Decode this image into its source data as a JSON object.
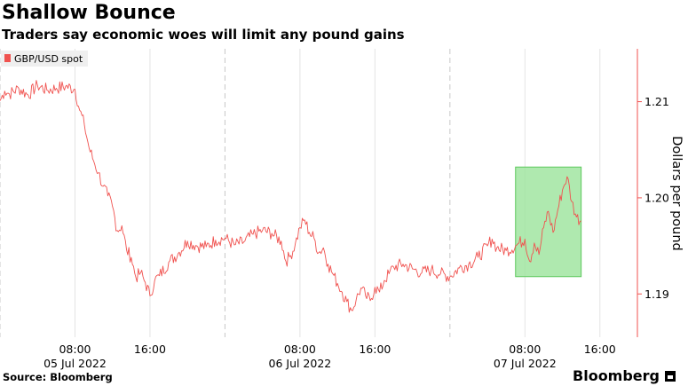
{
  "header": {
    "title": "Shallow Bounce",
    "subtitle": "Traders say economic woes will limit any pound gains"
  },
  "footer": {
    "source": "Source: Bloomberg",
    "brand": "Bloomberg"
  },
  "colors": {
    "series": "#f0524f",
    "highlight_fill": "#9be39b",
    "highlight_stroke": "#5cc85c",
    "axis": "#f0524f",
    "grid": "#c8c8c8"
  },
  "chart_data": {
    "type": "line",
    "title": "Shallow Bounce",
    "subtitle": "Traders say economic woes will limit any pound gains",
    "xlabel": "",
    "ylabel": "Dollars per pound",
    "ylim": [
      1.1855,
      1.2155
    ],
    "xlim": [
      0.0,
      68.0
    ],
    "y_ticks": [
      1.19,
      1.2,
      1.21
    ],
    "y_tick_labels": [
      "1.19",
      "1.20",
      "1.21"
    ],
    "x_ticks": [
      {
        "hour": 8.0,
        "line1": "08:00",
        "line2": "05 Jul 2022"
      },
      {
        "hour": 16.0,
        "line1": "16:00",
        "line2": ""
      },
      {
        "hour": 32.0,
        "line1": "08:00",
        "line2": "06 Jul 2022"
      },
      {
        "hour": 40.0,
        "line1": "16:00",
        "line2": ""
      },
      {
        "hour": 56.0,
        "line1": "08:00",
        "line2": "07 Jul 2022"
      },
      {
        "hour": 64.0,
        "line1": "16:00",
        "line2": ""
      }
    ],
    "day_separators": [
      0.0,
      24.0,
      48.0
    ],
    "legend": {
      "position": "top-left",
      "entries": [
        "GBP/USD spot"
      ]
    },
    "highlight": {
      "x_range": [
        55.0,
        62.0
      ],
      "y_range": [
        1.1918,
        1.2032
      ]
    },
    "series": [
      {
        "name": "GBP/USD spot",
        "x_hours": [
          0.0,
          0.5,
          1.0,
          2.0,
          3.0,
          4.0,
          5.0,
          6.0,
          7.0,
          8.0,
          8.5,
          9.0,
          9.5,
          10.0,
          10.5,
          11.0,
          11.5,
          12.0,
          12.5,
          13.0,
          13.5,
          14.0,
          14.5,
          15.0,
          15.5,
          16.0,
          16.5,
          17.0,
          18.0,
          19.0,
          20.0,
          21.0,
          22.0,
          23.0,
          24.0,
          25.0,
          26.0,
          27.0,
          28.0,
          29.0,
          30.0,
          30.5,
          31.0,
          31.5,
          32.0,
          32.5,
          33.0,
          33.5,
          34.0,
          34.5,
          35.0,
          35.5,
          36.0,
          36.5,
          37.0,
          37.5,
          38.0,
          38.5,
          39.0,
          39.5,
          40.0,
          40.5,
          41.0,
          41.5,
          42.0,
          43.0,
          44.0,
          45.0,
          46.0,
          47.0,
          48.0,
          49.0,
          50.0,
          51.0,
          52.0,
          52.5,
          53.0,
          54.0,
          55.0,
          56.0,
          56.5,
          57.0,
          57.5,
          58.0,
          58.5,
          59.0,
          59.5,
          60.0,
          60.5,
          61.0,
          61.5,
          62.0
        ],
        "values": [
          1.2101,
          1.2111,
          1.2108,
          1.2114,
          1.2107,
          1.2117,
          1.2112,
          1.2114,
          1.2116,
          1.2113,
          1.2091,
          1.2076,
          1.2052,
          1.2038,
          1.2026,
          1.2012,
          1.2002,
          1.1991,
          1.1966,
          1.1971,
          1.1946,
          1.1938,
          1.1917,
          1.1922,
          1.1912,
          1.1898,
          1.1914,
          1.1919,
          1.1933,
          1.1942,
          1.1955,
          1.195,
          1.1949,
          1.1956,
          1.1958,
          1.1951,
          1.1954,
          1.1962,
          1.1966,
          1.1963,
          1.1955,
          1.1934,
          1.194,
          1.1952,
          1.1969,
          1.1977,
          1.1964,
          1.1958,
          1.1943,
          1.1948,
          1.1931,
          1.1921,
          1.1911,
          1.1902,
          1.1892,
          1.1883,
          1.1894,
          1.1906,
          1.1898,
          1.1893,
          1.1907,
          1.1902,
          1.1914,
          1.1921,
          1.1928,
          1.1931,
          1.1926,
          1.1922,
          1.1925,
          1.1921,
          1.1918,
          1.1927,
          1.1931,
          1.1938,
          1.195,
          1.1957,
          1.1948,
          1.1945,
          1.195,
          1.1957,
          1.1934,
          1.1953,
          1.1941,
          1.1969,
          1.1986,
          1.1964,
          1.1987,
          1.2008,
          1.2022,
          1.1996,
          1.198,
          1.1976
        ]
      }
    ]
  }
}
